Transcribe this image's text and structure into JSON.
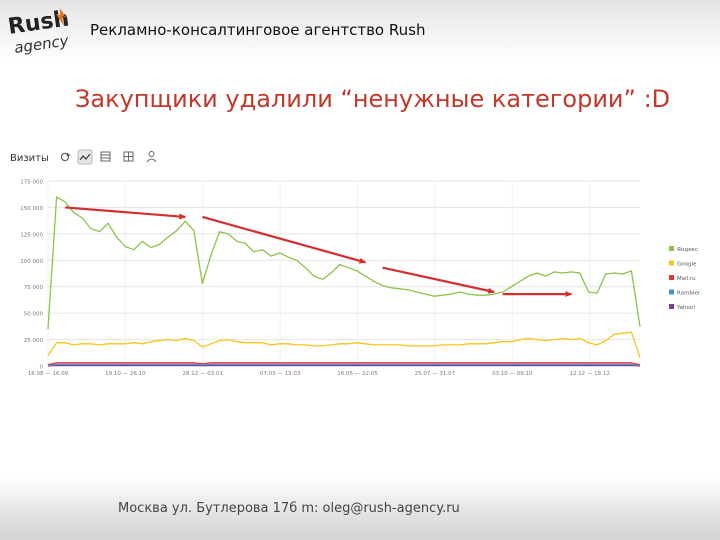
{
  "header": {
    "logo_text_top": "Rush",
    "logo_text_bottom": "agency",
    "agency_name": "Рекламно-консалтинговое агентство Rush"
  },
  "slide": {
    "title": "Закупщики удалили “ненужные категории” :D"
  },
  "chart_toolbar": {
    "label": "Визиты",
    "icons": [
      "refresh-icon",
      "line-chart-icon",
      "table-icon",
      "grid-icon",
      "user-icon"
    ]
  },
  "colors": {
    "title_red": "#c0392b",
    "yandex": "#8bc34a",
    "google": "#f5c518",
    "mail": "#e53935",
    "rambler": "#4a90d9",
    "yahoo": "#7b3fa0",
    "arrow": "#d32f2f"
  },
  "chart_data": {
    "type": "line",
    "ylim": [
      0,
      175000
    ],
    "y_ticks": [
      "175 000",
      "150 000",
      "125 000",
      "100 000",
      "75 000",
      "50 000",
      "25 000",
      "0"
    ],
    "x_ticks": [
      "16.08 — 16.09",
      "19.10 — 26.10",
      "28.12 — 03.01",
      "07.03 — 13.03",
      "16.05 — 22.05",
      "25.07 — 31.07",
      "03.10 — 09.10",
      "12.12 — 18.12"
    ],
    "legend": [
      "Яндекс",
      "Google",
      "Mail.ru",
      "Rambler",
      "Yahoo!"
    ],
    "legend_position": "right",
    "grid": true,
    "series": [
      {
        "name": "Яндекс",
        "color": "#8bc34a",
        "values": [
          35000,
          160000,
          155000,
          145000,
          140000,
          130000,
          127000,
          135000,
          122000,
          113000,
          110000,
          118000,
          112000,
          115000,
          122000,
          128000,
          137000,
          128000,
          78000,
          105000,
          127000,
          125000,
          118000,
          116000,
          108000,
          110000,
          104000,
          107000,
          103000,
          100000,
          93000,
          85000,
          82000,
          88000,
          96000,
          93000,
          90000,
          85000,
          80000,
          76000,
          74000,
          73000,
          72000,
          70000,
          68000,
          66000,
          67000,
          68000,
          70000,
          68000,
          67000,
          67000,
          68000,
          70000,
          75000,
          80000,
          85000,
          88000,
          85000,
          89000,
          88000,
          89000,
          88000,
          70000,
          69000,
          87000,
          88000,
          87000,
          90000,
          37000
        ]
      },
      {
        "name": "Google",
        "color": "#f5c518",
        "values": [
          10000,
          22000,
          22000,
          20000,
          21000,
          21000,
          20000,
          21000,
          21000,
          21000,
          22000,
          21000,
          23000,
          24000,
          25000,
          24000,
          26000,
          24000,
          18000,
          21000,
          24000,
          25000,
          23000,
          22000,
          22000,
          22000,
          20000,
          21000,
          21000,
          20000,
          20000,
          19000,
          19000,
          20000,
          21000,
          21000,
          22000,
          21000,
          20000,
          20000,
          20000,
          20000,
          19000,
          19000,
          19000,
          19000,
          20000,
          20000,
          20000,
          21000,
          21000,
          21000,
          22000,
          23000,
          23000,
          25000,
          26000,
          25000,
          24000,
          25000,
          26000,
          25000,
          26000,
          22000,
          20000,
          24000,
          30000,
          31000,
          32000,
          8000
        ]
      },
      {
        "name": "Mail.ru",
        "color": "#e53935",
        "values": [
          1000,
          3000,
          3000,
          3000,
          3000,
          3000,
          3000,
          3000,
          3000,
          3000,
          3000,
          3000,
          3000,
          3000,
          3000,
          3000,
          3000,
          3000,
          2000,
          3000,
          3000,
          3000,
          3000,
          3000,
          3000,
          3000,
          3000,
          3000,
          3000,
          3000,
          3000,
          3000,
          3000,
          3000,
          3000,
          3000,
          3000,
          3000,
          3000,
          3000,
          3000,
          3000,
          3000,
          3000,
          3000,
          3000,
          3000,
          3000,
          3000,
          3000,
          3000,
          3000,
          3000,
          3000,
          3000,
          3000,
          3000,
          3000,
          3000,
          3000,
          3000,
          3000,
          3000,
          3000,
          3000,
          3000,
          3000,
          3000,
          3000,
          1000
        ]
      },
      {
        "name": "Rambler",
        "color": "#4a90d9",
        "values": [
          500,
          1500,
          1500,
          1500,
          1500,
          1500,
          1500,
          1500,
          1500,
          1500,
          1500,
          1500,
          1500,
          1500,
          1500,
          1500,
          1500,
          1500,
          1000,
          1500,
          1500,
          1500,
          1500,
          1500,
          1500,
          1500,
          1500,
          1500,
          1500,
          1500,
          1500,
          1500,
          1500,
          1500,
          1500,
          1500,
          1500,
          1500,
          1500,
          1500,
          1500,
          1500,
          1500,
          1500,
          1500,
          1500,
          1500,
          1500,
          1500,
          1500,
          1500,
          1500,
          1500,
          1500,
          1500,
          1500,
          1500,
          1500,
          1500,
          1500,
          1500,
          1500,
          1500,
          1500,
          1500,
          1500,
          1500,
          1500,
          1500,
          500
        ]
      },
      {
        "name": "Yahoo!",
        "color": "#7b3fa0",
        "values": [
          200,
          600,
          600,
          600,
          600,
          600,
          600,
          600,
          600,
          600,
          600,
          600,
          600,
          600,
          600,
          600,
          600,
          600,
          400,
          600,
          600,
          600,
          600,
          600,
          600,
          600,
          600,
          600,
          600,
          600,
          600,
          600,
          600,
          600,
          600,
          600,
          600,
          600,
          600,
          600,
          600,
          600,
          600,
          600,
          600,
          600,
          600,
          600,
          600,
          600,
          600,
          600,
          600,
          600,
          600,
          600,
          600,
          600,
          600,
          600,
          600,
          600,
          600,
          600,
          600,
          600,
          600,
          600,
          600,
          200
        ]
      }
    ],
    "annotations": [
      {
        "type": "arrow",
        "from": [
          2,
          150000
        ],
        "to": [
          16,
          141000
        ]
      },
      {
        "type": "arrow",
        "from": [
          18,
          141000
        ],
        "to": [
          37,
          98000
        ]
      },
      {
        "type": "arrow",
        "from": [
          39,
          93000
        ],
        "to": [
          52,
          70000
        ]
      },
      {
        "type": "arrow",
        "from": [
          53,
          68000
        ],
        "to": [
          61,
          68000
        ]
      }
    ]
  },
  "footer": {
    "address": "Москва ул. Бутлерова 17б m: oleg@rush-agency.ru"
  }
}
